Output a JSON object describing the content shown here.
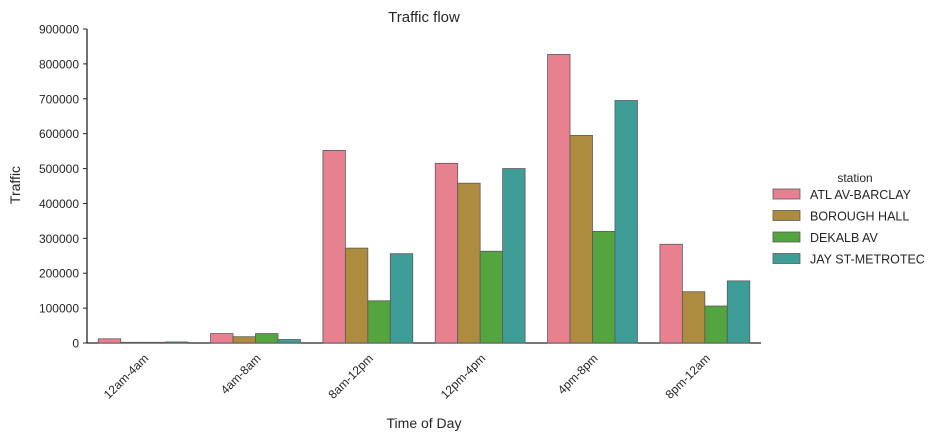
{
  "chart_data": {
    "type": "bar",
    "title": "Traffic flow",
    "xlabel": "Time of Day",
    "ylabel": "Traffic",
    "ylim": [
      0,
      900000
    ],
    "yticks": [
      0,
      100000,
      200000,
      300000,
      400000,
      500000,
      600000,
      700000,
      800000,
      900000
    ],
    "categories": [
      "12am-4am",
      "4am-8am",
      "8am-12pm",
      "12pm-4pm",
      "4pm-8pm",
      "8pm-12am"
    ],
    "legend_title": "station",
    "legend_position": "right",
    "grid": false,
    "series": [
      {
        "name": "ATL AV-BARCLAY",
        "color": "#e8818f",
        "values": [
          12000,
          27000,
          552000,
          515000,
          827000,
          283000
        ]
      },
      {
        "name": "BOROUGH HALL",
        "color": "#ad8c40",
        "values": [
          2000,
          18000,
          272000,
          458000,
          595000,
          147000
        ]
      },
      {
        "name": "DEKALB AV",
        "color": "#54a43f",
        "values": [
          2000,
          27000,
          121000,
          263000,
          320000,
          106000
        ]
      },
      {
        "name": "JAY ST-METROTEC",
        "color": "#3e9e97",
        "values": [
          3000,
          10000,
          256000,
          500000,
          695000,
          178000
        ]
      }
    ]
  }
}
